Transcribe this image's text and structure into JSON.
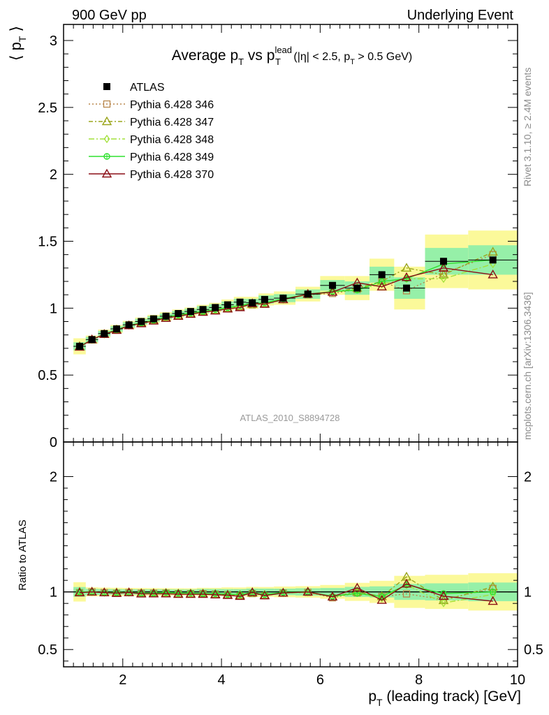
{
  "header": {
    "left": "900 GeV pp",
    "right": "Underlying Event"
  },
  "side_labels": {
    "rivet": "Rivet 3.1.10, ≥ 2.4M events",
    "mcplots": "mcplots.cern.ch [arXiv:1306.3436]"
  },
  "chart_data": {
    "type": "scatter",
    "title": "Average p_T vs p_T^lead (|η| < 2.5, p_T > 0.5 GeV)",
    "analysis_id": "ATLAS_2010_S8894728",
    "ylabel": "⟨ p_T ⟩",
    "xlabel": "p_T (leading track) [GeV]",
    "xlim": [
      0.8,
      10.0
    ],
    "ylim": [
      0,
      3.12
    ],
    "ratio_ylabel": "Ratio to ATLAS",
    "ratio_ylim": [
      0.35,
      2.3
    ],
    "x_ticks": [
      2,
      4,
      6,
      8,
      10
    ],
    "y_ticks": [
      0,
      0.5,
      1,
      1.5,
      2,
      2.5,
      3
    ],
    "ratio_y_ticks": [
      0.5,
      1,
      2
    ],
    "legend_position": "top-left",
    "x": [
      1.125,
      1.375,
      1.625,
      1.875,
      2.125,
      2.375,
      2.625,
      2.875,
      3.125,
      3.375,
      3.625,
      3.875,
      4.125,
      4.375,
      4.625,
      4.875,
      5.25,
      5.75,
      6.25,
      6.75,
      7.25,
      7.75,
      8.5,
      9.5
    ],
    "data": {
      "name": "ATLAS",
      "values": [
        0.715,
        0.765,
        0.81,
        0.845,
        0.875,
        0.9,
        0.92,
        0.94,
        0.96,
        0.975,
        0.99,
        1.005,
        1.025,
        1.045,
        1.04,
        1.065,
        1.075,
        1.105,
        1.17,
        1.15,
        1.25,
        1.15,
        1.35,
        1.36
      ],
      "band_inner": [
        0.03,
        0.02,
        0.02,
        0.02,
        0.02,
        0.02,
        0.02,
        0.02,
        0.02,
        0.02,
        0.025,
        0.025,
        0.025,
        0.025,
        0.03,
        0.03,
        0.03,
        0.035,
        0.04,
        0.05,
        0.06,
        0.08,
        0.1,
        0.11
      ],
      "band_outer": [
        0.06,
        0.03,
        0.03,
        0.03,
        0.03,
        0.03,
        0.03,
        0.03,
        0.03,
        0.03,
        0.035,
        0.035,
        0.04,
        0.04,
        0.045,
        0.045,
        0.05,
        0.055,
        0.07,
        0.09,
        0.12,
        0.16,
        0.2,
        0.22
      ]
    },
    "series": [
      {
        "name": "Pythia 6.428 346",
        "color": "#b8864b",
        "marker": "square",
        "dash": "2,3",
        "values": [
          0.71,
          0.765,
          0.805,
          0.835,
          0.87,
          0.89,
          0.91,
          0.93,
          0.945,
          0.96,
          0.975,
          0.985,
          1.0,
          1.01,
          1.025,
          1.03,
          1.065,
          1.1,
          1.11,
          1.14,
          1.2,
          1.13,
          1.26,
          1.4
        ]
      },
      {
        "name": "Pythia 6.428 347",
        "color": "#9aa51b",
        "marker": "triangle",
        "dash": "6,3,2,3",
        "values": [
          0.715,
          0.765,
          0.805,
          0.84,
          0.87,
          0.89,
          0.91,
          0.93,
          0.945,
          0.96,
          0.975,
          0.985,
          1.0,
          1.015,
          1.03,
          1.035,
          1.065,
          1.105,
          1.12,
          1.15,
          1.2,
          1.3,
          1.25,
          1.42
        ]
      },
      {
        "name": "Pythia 6.428 348",
        "color": "#a2e03a",
        "marker": "diamond",
        "dash": "8,3,2,3",
        "values": [
          0.715,
          0.765,
          0.805,
          0.84,
          0.87,
          0.89,
          0.91,
          0.93,
          0.945,
          0.96,
          0.975,
          0.985,
          1.0,
          1.015,
          1.03,
          1.035,
          1.065,
          1.1,
          1.12,
          1.14,
          1.18,
          1.22,
          1.22,
          1.33
        ]
      },
      {
        "name": "Pythia 6.428 349",
        "color": "#2ee12e",
        "marker": "circle",
        "dash": "",
        "values": [
          0.715,
          0.765,
          0.805,
          0.84,
          0.87,
          0.89,
          0.91,
          0.935,
          0.95,
          0.965,
          0.975,
          0.99,
          1.005,
          1.02,
          1.035,
          1.04,
          1.07,
          1.105,
          1.125,
          1.135,
          1.2,
          1.22,
          1.33,
          1.36
        ]
      },
      {
        "name": "Pythia 6.428 370",
        "color": "#8b0f17",
        "marker": "triangle-open",
        "dash": "",
        "values": [
          0.71,
          0.765,
          0.805,
          0.835,
          0.87,
          0.885,
          0.905,
          0.925,
          0.94,
          0.955,
          0.97,
          0.98,
          0.995,
          1.005,
          1.035,
          1.03,
          1.065,
          1.105,
          1.12,
          1.19,
          1.16,
          1.23,
          1.3,
          1.25
        ]
      }
    ]
  }
}
